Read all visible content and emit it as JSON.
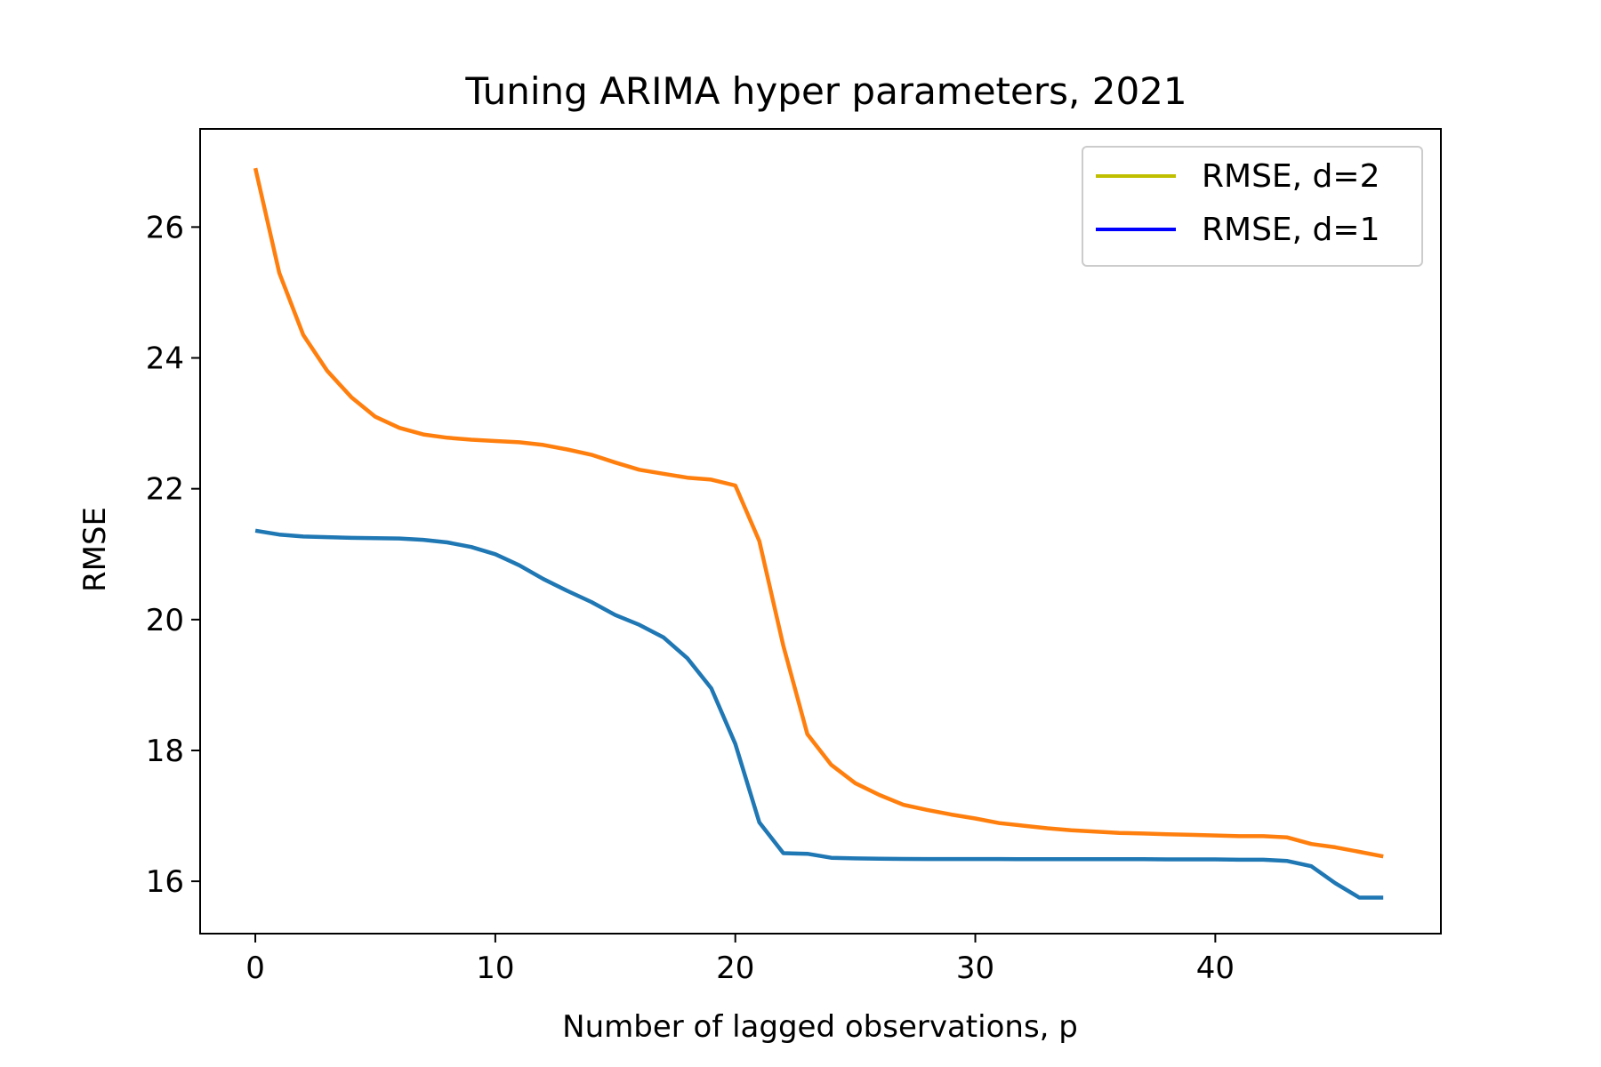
{
  "chart_data": {
    "type": "line",
    "title": "Tuning ARIMA hyper parameters, 2021",
    "xlabel": "Number of lagged observations, p",
    "ylabel": "RMSE",
    "xlim": [
      -2.3,
      49.4
    ],
    "ylim": [
      15.2,
      27.5
    ],
    "xticks": [
      0,
      10,
      20,
      30,
      40
    ],
    "yticks": [
      16,
      18,
      20,
      22,
      24,
      26
    ],
    "grid": false,
    "legend_position": "top-right",
    "legend": [
      {
        "label": "RMSE, d=2",
        "color": "#bfbf00"
      },
      {
        "label": "RMSE, d=1",
        "color": "#0000ff"
      }
    ],
    "x": [
      0,
      1,
      2,
      3,
      4,
      5,
      6,
      7,
      8,
      9,
      10,
      11,
      12,
      13,
      14,
      15,
      16,
      17,
      18,
      19,
      20,
      21,
      22,
      23,
      24,
      25,
      26,
      27,
      28,
      29,
      30,
      31,
      32,
      33,
      34,
      35,
      36,
      37,
      38,
      39,
      40,
      41,
      42,
      43,
      44,
      45,
      46,
      47
    ],
    "series": [
      {
        "color": "#ff7f0e",
        "values": [
          26.9,
          25.3,
          24.35,
          23.8,
          23.4,
          23.1,
          22.93,
          22.83,
          22.78,
          22.75,
          22.73,
          22.71,
          22.67,
          22.6,
          22.52,
          22.4,
          22.29,
          22.23,
          22.17,
          22.14,
          22.05,
          21.2,
          19.6,
          18.25,
          17.78,
          17.5,
          17.32,
          17.17,
          17.09,
          17.02,
          16.96,
          16.89,
          16.85,
          16.81,
          16.78,
          16.76,
          16.74,
          16.73,
          16.72,
          16.71,
          16.7,
          16.69,
          16.69,
          16.67,
          16.57,
          16.52,
          16.45,
          16.38
        ]
      },
      {
        "color": "#1f77b4",
        "values": [
          21.36,
          21.3,
          21.27,
          21.26,
          21.25,
          21.245,
          21.24,
          21.22,
          21.18,
          21.11,
          21.0,
          20.83,
          20.62,
          20.44,
          20.27,
          20.07,
          19.92,
          19.73,
          19.41,
          18.95,
          18.1,
          16.9,
          16.43,
          16.42,
          16.36,
          16.35,
          16.345,
          16.342,
          16.34,
          16.34,
          16.34,
          16.34,
          16.338,
          16.338,
          16.338,
          16.338,
          16.338,
          16.338,
          16.335,
          16.335,
          16.335,
          16.33,
          16.33,
          16.31,
          16.23,
          15.97,
          15.75,
          15.75
        ]
      }
    ]
  }
}
